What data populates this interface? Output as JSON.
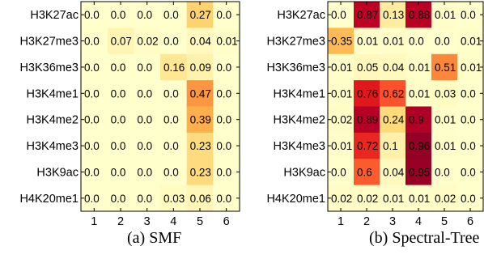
{
  "rows": [
    "H3K27ac",
    "H3K27me3",
    "H3K36me3",
    "H3K4me1",
    "H3K4me2",
    "H3K4me3",
    "H3K9ac",
    "H4K20me1"
  ],
  "columns": [
    "1",
    "2",
    "3",
    "4",
    "5",
    "6"
  ],
  "colormap": [
    "#ffffcc",
    "#ffeda0",
    "#fed976",
    "#feb24c",
    "#fd8d3c",
    "#fc4e2a",
    "#e31a1c",
    "#bd0026",
    "#800026"
  ],
  "chart_data": [
    {
      "type": "heatmap",
      "caption": "(a)  SMF",
      "rows": [
        "H3K27ac",
        "H3K27me3",
        "H3K36me3",
        "H3K4me1",
        "H3K4me2",
        "H3K4me3",
        "H3K9ac",
        "H4K20me1"
      ],
      "columns": [
        "1",
        "2",
        "3",
        "4",
        "5",
        "6"
      ],
      "values": [
        [
          0.0,
          0.0,
          0.0,
          0.0,
          0.27,
          0.0
        ],
        [
          0.0,
          0.07,
          0.02,
          0.0,
          0.04,
          0.01
        ],
        [
          0.0,
          0.0,
          0.0,
          0.16,
          0.09,
          0.0
        ],
        [
          0.0,
          0.0,
          0.0,
          0.0,
          0.47,
          0.0
        ],
        [
          0.0,
          0.0,
          0.0,
          0.0,
          0.39,
          0.0
        ],
        [
          0.0,
          0.0,
          0.0,
          0.0,
          0.23,
          0.0
        ],
        [
          0.0,
          0.0,
          0.0,
          0.0,
          0.23,
          0.0
        ],
        [
          0.0,
          0.0,
          0.0,
          0.03,
          0.06,
          0.0
        ]
      ],
      "labels": [
        [
          "0.0",
          "0.0",
          "0.0",
          "0.0",
          "0.27",
          "0.0"
        ],
        [
          "0.0",
          "0.07",
          "0.02",
          "0.0",
          "0.04",
          "0.01"
        ],
        [
          "0.0",
          "0.0",
          "0.0",
          "0.16",
          "0.09",
          "0.0"
        ],
        [
          "0.0",
          "0.0",
          "0.0",
          "0.0",
          "0.47",
          "0.0"
        ],
        [
          "0.0",
          "0.0",
          "0.0",
          "0.0",
          "0.39",
          "0.0"
        ],
        [
          "0.0",
          "0.0",
          "0.0",
          "0.0",
          "0.23",
          "0.0"
        ],
        [
          "0.0",
          "0.0",
          "0.0",
          "0.0",
          "0.23",
          "0.0"
        ],
        [
          "0.0",
          "0.0",
          "0.0",
          "0.03",
          "0.06",
          "0.0"
        ]
      ]
    },
    {
      "type": "heatmap",
      "caption": "(b)  Spectral-Tree",
      "rows": [
        "H3K27ac",
        "H3K27me3",
        "H3K36me3",
        "H3K4me1",
        "H3K4me2",
        "H3K4me3",
        "H3K9ac",
        "H4K20me1"
      ],
      "columns": [
        "1",
        "2",
        "3",
        "4",
        "5",
        "6"
      ],
      "values": [
        [
          0.0,
          0.87,
          0.13,
          0.88,
          0.01,
          0.0
        ],
        [
          0.35,
          0.01,
          0.01,
          0.0,
          0.0,
          0.01
        ],
        [
          0.01,
          0.05,
          0.04,
          0.01,
          0.51,
          0.01
        ],
        [
          0.01,
          0.76,
          0.62,
          0.01,
          0.03,
          0.0
        ],
        [
          0.02,
          0.89,
          0.24,
          0.9,
          0.01,
          0.0
        ],
        [
          0.01,
          0.72,
          0.1,
          0.96,
          0.01,
          0.0
        ],
        [
          0.0,
          0.6,
          0.04,
          0.95,
          0.0,
          0.0
        ],
        [
          0.02,
          0.02,
          0.01,
          0.01,
          0.02,
          0.0
        ]
      ],
      "labels": [
        [
          "0.0",
          "0.87",
          "0.13",
          "0.88",
          "0.01",
          "0.0"
        ],
        [
          "0.35",
          "0.01",
          "0.01",
          "0.0",
          "0.0",
          "0.01"
        ],
        [
          "0.01",
          "0.05",
          "0.04",
          "0.01",
          "0.51",
          "0.01"
        ],
        [
          "0.01",
          "0.76",
          "0.62",
          "0.01",
          "0.03",
          "0.0"
        ],
        [
          "0.02",
          "0.89",
          "0.24",
          "0.9",
          "0.01",
          "0.0"
        ],
        [
          "0.01",
          "0.72",
          "0.1",
          "0.96",
          "0.01",
          "0.0"
        ],
        [
          "0.0",
          "0.6",
          "0.04",
          "0.95",
          "0.0",
          "0.0"
        ],
        [
          "0.02",
          "0.02",
          "0.01",
          "0.01",
          "0.02",
          "0.0"
        ]
      ]
    }
  ]
}
